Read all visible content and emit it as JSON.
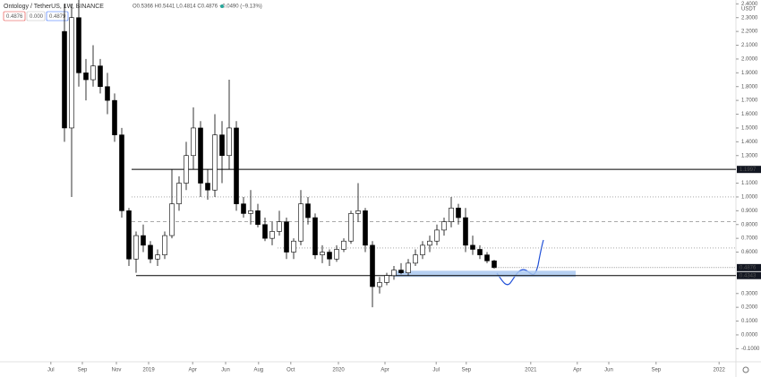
{
  "chart_data": {
    "type": "candlestick",
    "title": "Ontology / TetherUS, 1W, BINANCE",
    "ohlc_text": "O0.5366 H0.5441 L0.4814 C0.4876 −0.0490 (−9.13%)",
    "buttons": [
      "0.4876",
      "0.000",
      "0.4879"
    ],
    "currency": "USDT",
    "up_color": "#ffffff",
    "down_color": "#000000",
    "open": [
      2.2,
      1.5,
      2.3,
      1.9,
      1.85,
      1.95,
      1.8,
      1.7,
      1.45,
      0.9,
      0.55,
      0.72,
      0.65,
      0.55,
      0.58,
      0.72,
      0.95,
      1.1,
      1.3,
      1.5,
      1.1,
      1.05,
      1.45,
      1.3,
      1.5,
      0.95,
      0.88,
      0.9,
      0.8,
      0.7,
      0.75,
      0.82,
      0.6,
      0.68,
      0.95,
      0.85,
      0.58,
      0.6,
      0.55,
      0.62,
      0.68,
      0.88,
      0.9,
      0.65,
      0.35,
      0.38,
      0.43,
      0.47,
      0.45,
      0.52,
      0.58,
      0.65,
      0.68,
      0.76,
      0.82,
      0.92,
      0.85,
      0.65,
      0.62,
      0.58,
      0.5366
    ],
    "high": [
      2.4,
      2.4,
      2.45,
      2.0,
      2.1,
      2.0,
      1.9,
      1.75,
      1.5,
      0.92,
      0.75,
      0.8,
      0.68,
      0.62,
      0.75,
      1.2,
      1.15,
      1.4,
      1.65,
      1.55,
      1.2,
      1.6,
      1.55,
      1.85,
      1.55,
      1.0,
      1.05,
      0.95,
      0.85,
      0.82,
      0.9,
      0.85,
      0.7,
      1.05,
      1.0,
      0.88,
      0.65,
      0.62,
      0.65,
      0.7,
      0.9,
      1.1,
      0.92,
      0.68,
      0.42,
      0.45,
      0.5,
      0.52,
      0.55,
      0.62,
      0.68,
      0.72,
      0.8,
      0.85,
      1.0,
      0.95,
      0.92,
      0.72,
      0.65,
      0.6,
      0.5441
    ],
    "low": [
      1.4,
      1.0,
      1.8,
      1.7,
      1.8,
      1.75,
      1.6,
      1.4,
      0.85,
      0.5,
      0.45,
      0.6,
      0.52,
      0.5,
      0.55,
      0.7,
      0.9,
      1.05,
      1.2,
      1.0,
      0.98,
      1.0,
      1.1,
      1.2,
      0.9,
      0.85,
      0.8,
      0.78,
      0.68,
      0.65,
      0.72,
      0.55,
      0.55,
      0.65,
      0.8,
      0.55,
      0.52,
      0.5,
      0.53,
      0.6,
      0.66,
      0.82,
      0.6,
      0.2,
      0.3,
      0.36,
      0.4,
      0.44,
      0.43,
      0.5,
      0.55,
      0.6,
      0.65,
      0.72,
      0.78,
      0.8,
      0.6,
      0.58,
      0.55,
      0.52,
      0.4814
    ],
    "close": [
      1.5,
      2.3,
      1.9,
      1.85,
      1.95,
      1.8,
      1.7,
      1.45,
      0.9,
      0.55,
      0.72,
      0.65,
      0.55,
      0.58,
      0.72,
      0.95,
      1.1,
      1.3,
      1.5,
      1.1,
      1.05,
      1.45,
      1.3,
      1.5,
      0.95,
      0.88,
      0.9,
      0.8,
      0.7,
      0.75,
      0.82,
      0.6,
      0.68,
      0.95,
      0.85,
      0.58,
      0.6,
      0.55,
      0.62,
      0.68,
      0.88,
      0.9,
      0.65,
      0.35,
      0.38,
      0.43,
      0.47,
      0.45,
      0.52,
      0.58,
      0.65,
      0.68,
      0.76,
      0.82,
      0.92,
      0.85,
      0.65,
      0.62,
      0.58,
      0.5366,
      0.4876
    ],
    "xlim": [
      -9,
      93.75
    ],
    "xticks": [
      {
        "value": -1.9,
        "label": "Jul"
      },
      {
        "value": 2.5,
        "label": "Sep"
      },
      {
        "value": 7.25,
        "label": "Nov"
      },
      {
        "value": 11.75,
        "label": "2019"
      },
      {
        "value": 17.9,
        "label": "Apr"
      },
      {
        "value": 22.5,
        "label": "Jun"
      },
      {
        "value": 27.1,
        "label": "Aug"
      },
      {
        "value": 31.6,
        "label": "Oct"
      },
      {
        "value": 38.25,
        "label": "2020"
      },
      {
        "value": 44.75,
        "label": "Apr"
      },
      {
        "value": 51.9,
        "label": "Jul"
      },
      {
        "value": 56.1,
        "label": "Sep"
      },
      {
        "value": 65.1,
        "label": "2021"
      },
      {
        "value": 71.6,
        "label": "Apr"
      },
      {
        "value": 76,
        "label": "Jun"
      },
      {
        "value": 82.6,
        "label": "Sep"
      },
      {
        "value": 91.4,
        "label": "2022"
      }
    ],
    "ylim": [
      -0.195,
      2.428
    ],
    "yticks": [
      {
        "value": 2.4,
        "label": "2.4000"
      },
      {
        "value": 2.3,
        "label": "2.3000"
      },
      {
        "value": 2.2,
        "label": "2.2000"
      },
      {
        "value": 2.1,
        "label": "2.1000"
      },
      {
        "value": 2.0,
        "label": "2.0000"
      },
      {
        "value": 1.9,
        "label": "1.9000"
      },
      {
        "value": 1.8,
        "label": "1.8000"
      },
      {
        "value": 1.7,
        "label": "1.7000"
      },
      {
        "value": 1.6,
        "label": "1.6000"
      },
      {
        "value": 1.5,
        "label": "1.5000"
      },
      {
        "value": 1.4,
        "label": "1.4000"
      },
      {
        "value": 1.3,
        "label": "1.3000"
      },
      {
        "value": 1.1,
        "label": "1.1000"
      },
      {
        "value": 1.0,
        "label": "1.0000"
      },
      {
        "value": 0.9,
        "label": "0.9000"
      },
      {
        "value": 0.8,
        "label": "0.8000"
      },
      {
        "value": 0.7,
        "label": "0.7000"
      },
      {
        "value": 0.6,
        "label": "0.6000"
      },
      {
        "value": 0.3,
        "label": "0.3000"
      },
      {
        "value": 0.2,
        "label": "0.2000"
      },
      {
        "value": 0.1,
        "label": "0.1000"
      },
      {
        "value": 0,
        "label": "0.0000"
      },
      {
        "value": -0.1,
        "label": "-0.1000"
      }
    ],
    "levels": [
      {
        "value": 1.1997,
        "label": "1.1997",
        "style": "solid"
      },
      {
        "value": 1.0,
        "style": "dotted"
      },
      {
        "value": 0.82,
        "style": "dashed"
      },
      {
        "value": 0.63,
        "style": "dotted"
      },
      {
        "value": 0.43,
        "label": "0.4343",
        "style": "solid"
      }
    ],
    "last_price": {
      "value": 0.4876,
      "label": "0.4876"
    },
    "zone": [
      0.42,
      0.465
    ],
    "zone_color": "#a9c8f0"
  }
}
